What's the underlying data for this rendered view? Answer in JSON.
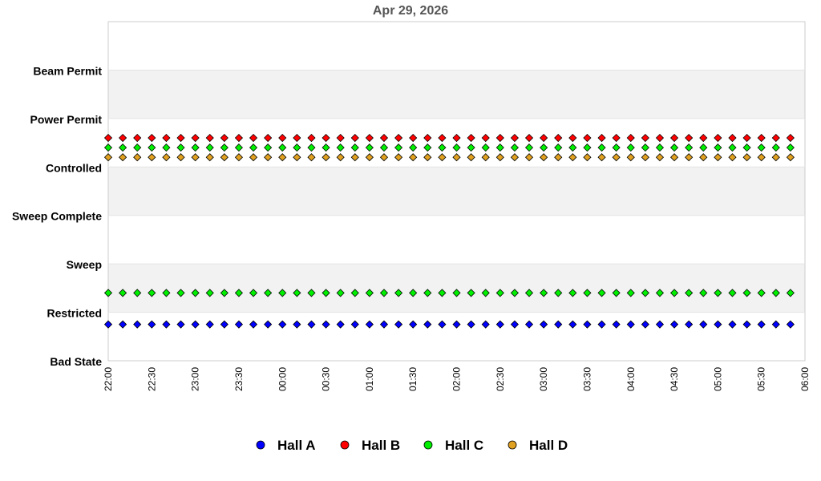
{
  "chart_data": {
    "type": "scatter",
    "title": "Apr 29, 2026",
    "y_categories": [
      "Bad State",
      "Restricted",
      "Sweep",
      "Sweep Complete",
      "Controlled",
      "Power Permit",
      "Beam Permit"
    ],
    "x_ticks": [
      "22:00",
      "22:30",
      "23:00",
      "23:30",
      "00:00",
      "00:30",
      "01:00",
      "01:30",
      "02:00",
      "02:30",
      "03:00",
      "03:30",
      "04:00",
      "04:30",
      "05:00",
      "05:30",
      "06:00"
    ],
    "x_range": [
      "22:00",
      "06:00"
    ],
    "sample_interval_minutes": 10,
    "grid": "alternating horizontal bands",
    "legend_position": "bottom",
    "series": [
      {
        "name": "Hall A",
        "color": "#0000ff",
        "state_level": 0.75,
        "start": "22:00",
        "end": "05:50"
      },
      {
        "name": "Hall B",
        "color": "#ff0000",
        "state_level": 4.6,
        "start": "22:00",
        "end": "05:50"
      },
      {
        "name": "Hall C",
        "color": "#00ee00",
        "state_level": 4.4,
        "start": "22:00",
        "end": "05:50"
      },
      {
        "name": "Hall C",
        "color": "#00ee00",
        "state_level": 1.4,
        "start": "22:00",
        "end": "05:50"
      },
      {
        "name": "Hall D",
        "color": "#e0a020",
        "state_level": 4.2,
        "start": "22:00",
        "end": "05:50"
      }
    ]
  },
  "legend": [
    {
      "label": "Hall A",
      "color": "#0000ff"
    },
    {
      "label": "Hall B",
      "color": "#ff0000"
    },
    {
      "label": "Hall C",
      "color": "#00ee00"
    },
    {
      "label": "Hall D",
      "color": "#e0a020"
    }
  ]
}
